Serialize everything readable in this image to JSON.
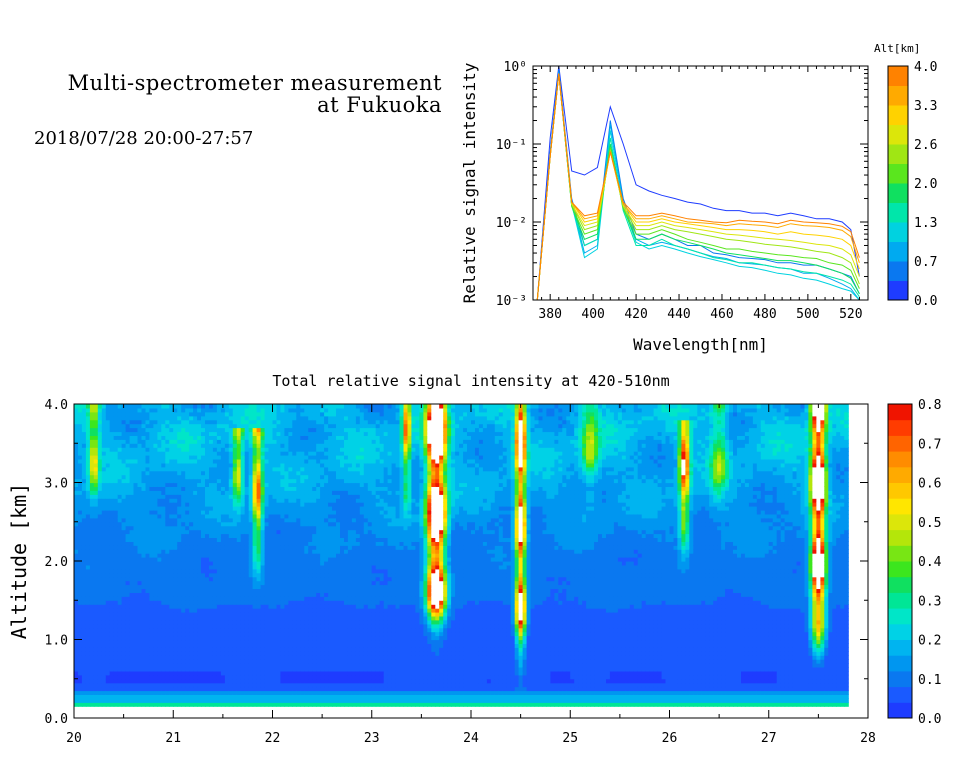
{
  "header": {
    "title_line1": "Multi-spectrometer measurement",
    "title_line2": "at Fukuoka",
    "datetime": "2018/07/28 20:00-27:57"
  },
  "chart_data": [
    {
      "type": "line",
      "xlabel": "Wavelength[nm]",
      "ylabel": "Relative signal intensity",
      "xlim": [
        372,
        528
      ],
      "ylim": [
        0.001,
        1
      ],
      "yscale": "log",
      "x_ticks": [
        380,
        400,
        420,
        440,
        460,
        480,
        500,
        520
      ],
      "y_tick_labels": [
        "10⁻³",
        "10⁻²",
        "10⁻¹",
        "10⁰"
      ],
      "y_ticks": [
        0.001,
        0.01,
        0.1,
        1
      ],
      "colorbar": {
        "label": "Alt[km]",
        "range": [
          0.0,
          4.0
        ],
        "tick_labels": [
          "0.0",
          "0.7",
          "1.3",
          "2.0",
          "2.6",
          "3.3",
          "4.0"
        ],
        "colors": [
          "#1e3cff",
          "#0a78f0",
          "#00aaf0",
          "#00d2e0",
          "#00e6aa",
          "#10e060",
          "#5ae61e",
          "#a0e614",
          "#dce60a",
          "#ffd200",
          "#ffaa00",
          "#ff8200"
        ]
      },
      "x": [
        374,
        380,
        384,
        390,
        396,
        402,
        408,
        414,
        420,
        426,
        432,
        438,
        444,
        450,
        456,
        462,
        468,
        474,
        480,
        486,
        492,
        498,
        504,
        510,
        516,
        520,
        524
      ],
      "series": [
        {
          "alt": 0.0,
          "color": "#1e3cff",
          "values": [
            0.001,
            0.12,
            1.0,
            0.045,
            0.04,
            0.05,
            0.3,
            0.1,
            0.03,
            0.025,
            0.022,
            0.02,
            0.018,
            0.017,
            0.015,
            0.014,
            0.014,
            0.013,
            0.013,
            0.012,
            0.013,
            0.012,
            0.011,
            0.011,
            0.01,
            0.008,
            0.002
          ]
        },
        {
          "alt": 0.3,
          "color": "#0a78f0",
          "values": [
            0.001,
            0.08,
            0.9,
            0.02,
            0.005,
            0.006,
            0.2,
            0.02,
            0.007,
            0.006,
            0.007,
            0.006,
            0.005,
            0.005,
            0.004,
            0.0038,
            0.0035,
            0.0034,
            0.0033,
            0.003,
            0.003,
            0.0028,
            0.0028,
            0.0025,
            0.0022,
            0.002,
            0.0012
          ]
        },
        {
          "alt": 0.7,
          "color": "#00aaf0",
          "values": [
            0.001,
            0.075,
            0.85,
            0.018,
            0.004,
            0.005,
            0.18,
            0.018,
            0.006,
            0.005,
            0.0055,
            0.005,
            0.0045,
            0.004,
            0.0036,
            0.0034,
            0.003,
            0.0029,
            0.0028,
            0.0026,
            0.0025,
            0.0022,
            0.0022,
            0.0019,
            0.0016,
            0.0014,
            0.001
          ]
        },
        {
          "alt": 1.0,
          "color": "#00d2e0",
          "values": [
            0.001,
            0.07,
            0.8,
            0.017,
            0.0035,
            0.0045,
            0.15,
            0.016,
            0.0055,
            0.0045,
            0.005,
            0.0045,
            0.004,
            0.0036,
            0.0033,
            0.003,
            0.0027,
            0.0026,
            0.0024,
            0.0022,
            0.0021,
            0.0019,
            0.0018,
            0.0016,
            0.0014,
            0.0013,
            0.001
          ]
        },
        {
          "alt": 1.3,
          "color": "#00e6aa",
          "values": [
            0.001,
            0.07,
            0.8,
            0.016,
            0.005,
            0.006,
            0.12,
            0.014,
            0.005,
            0.005,
            0.006,
            0.005,
            0.0045,
            0.004,
            0.0035,
            0.0033,
            0.003,
            0.003,
            0.0028,
            0.0026,
            0.0025,
            0.0023,
            0.0022,
            0.002,
            0.0018,
            0.0016,
            0.0011
          ]
        },
        {
          "alt": 1.7,
          "color": "#10e060",
          "values": [
            0.001,
            0.07,
            0.8,
            0.016,
            0.006,
            0.007,
            0.1,
            0.015,
            0.006,
            0.006,
            0.007,
            0.006,
            0.0055,
            0.005,
            0.0045,
            0.004,
            0.0038,
            0.0036,
            0.0034,
            0.0032,
            0.0032,
            0.003,
            0.0028,
            0.0025,
            0.0022,
            0.0019,
            0.0012
          ]
        },
        {
          "alt": 2.0,
          "color": "#5ae61e",
          "values": [
            0.001,
            0.07,
            0.8,
            0.016,
            0.007,
            0.008,
            0.09,
            0.015,
            0.007,
            0.007,
            0.008,
            0.007,
            0.006,
            0.0055,
            0.005,
            0.0045,
            0.0045,
            0.0042,
            0.004,
            0.0038,
            0.0037,
            0.0035,
            0.0034,
            0.003,
            0.0028,
            0.0024,
            0.0014
          ]
        },
        {
          "alt": 2.3,
          "color": "#a0e614",
          "values": [
            0.001,
            0.07,
            0.8,
            0.017,
            0.008,
            0.009,
            0.085,
            0.016,
            0.008,
            0.008,
            0.009,
            0.008,
            0.0075,
            0.007,
            0.0065,
            0.006,
            0.0058,
            0.0055,
            0.0052,
            0.005,
            0.0048,
            0.0045,
            0.0042,
            0.004,
            0.0035,
            0.003,
            0.0016
          ]
        },
        {
          "alt": 2.6,
          "color": "#dce60a",
          "values": [
            0.001,
            0.07,
            0.8,
            0.017,
            0.009,
            0.01,
            0.08,
            0.016,
            0.009,
            0.009,
            0.01,
            0.009,
            0.0085,
            0.008,
            0.0075,
            0.007,
            0.0068,
            0.0065,
            0.0062,
            0.006,
            0.0058,
            0.0055,
            0.0052,
            0.005,
            0.0045,
            0.0038,
            0.002
          ]
        },
        {
          "alt": 3.0,
          "color": "#ffd200",
          "values": [
            0.001,
            0.07,
            0.8,
            0.018,
            0.01,
            0.011,
            0.08,
            0.017,
            0.01,
            0.01,
            0.011,
            0.01,
            0.0095,
            0.009,
            0.0085,
            0.008,
            0.008,
            0.0078,
            0.0075,
            0.007,
            0.0075,
            0.007,
            0.0068,
            0.0065,
            0.006,
            0.005,
            0.0025
          ]
        },
        {
          "alt": 3.3,
          "color": "#ffaa00",
          "values": [
            0.001,
            0.07,
            0.8,
            0.018,
            0.011,
            0.012,
            0.08,
            0.017,
            0.011,
            0.011,
            0.012,
            0.011,
            0.01,
            0.0098,
            0.0095,
            0.009,
            0.0095,
            0.0092,
            0.009,
            0.0085,
            0.0095,
            0.009,
            0.0088,
            0.0085,
            0.0078,
            0.0065,
            0.003
          ]
        },
        {
          "alt": 3.7,
          "color": "#ff8200",
          "values": [
            0.001,
            0.07,
            0.8,
            0.018,
            0.012,
            0.013,
            0.08,
            0.018,
            0.012,
            0.012,
            0.013,
            0.012,
            0.011,
            0.0105,
            0.01,
            0.0098,
            0.0105,
            0.0102,
            0.01,
            0.0095,
            0.0105,
            0.01,
            0.0098,
            0.0095,
            0.0088,
            0.0075,
            0.0035
          ]
        }
      ]
    },
    {
      "type": "heatmap",
      "title": "Total relative signal intensity at 420-510nm",
      "ylabel": "Altitude [km]",
      "xlim": [
        20,
        28
      ],
      "ylim": [
        0,
        4
      ],
      "data_x_range": [
        20,
        27.8
      ],
      "data_y_range": [
        0.15,
        4.0
      ],
      "x_ticks": [
        20,
        21,
        22,
        23,
        24,
        25,
        26,
        27,
        28
      ],
      "y_ticks": [
        0.0,
        1.0,
        2.0,
        3.0,
        4.0
      ],
      "y_tick_labels": [
        "0.0",
        "1.0",
        "2.0",
        "3.0",
        "4.0"
      ],
      "colorbar": {
        "range": [
          0.0,
          0.8
        ],
        "tick_labels": [
          "0.0",
          "0.1",
          "0.2",
          "0.3",
          "0.4",
          "0.5",
          "0.6",
          "0.7",
          "0.8"
        ],
        "colors": [
          "#1e3cff",
          "#1a5aff",
          "#0a78f0",
          "#0096f0",
          "#00b4f0",
          "#00d2e6",
          "#00e6c8",
          "#00e696",
          "#10e060",
          "#3ce61e",
          "#78e614",
          "#b4e60a",
          "#dce60a",
          "#ffe600",
          "#ffc800",
          "#ffaa00",
          "#ff8c00",
          "#ff6400",
          "#ff3c00",
          "#f01400"
        ],
        "over_color": "#ffffff"
      },
      "base_profile": {
        "altitudes": [
          0.15,
          0.2,
          0.25,
          0.3,
          0.35,
          0.45,
          0.6,
          1.0,
          1.3,
          1.6,
          2.0,
          2.4,
          2.8,
          3.2,
          3.6,
          4.0
        ],
        "values": [
          0.35,
          0.22,
          0.12,
          0.2,
          0.08,
          0.04,
          0.04,
          0.05,
          0.07,
          0.09,
          0.1,
          0.12,
          0.15,
          0.17,
          0.19,
          0.18
        ]
      },
      "plumes": [
        {
          "time": 23.65,
          "width": 0.09,
          "alt_min": 1.7,
          "alt_max": 4.0,
          "peak": 1.0
        },
        {
          "time": 24.5,
          "width": 0.05,
          "alt_min": 1.3,
          "alt_max": 4.0,
          "peak": 0.75
        },
        {
          "time": 27.5,
          "width": 0.07,
          "alt_min": 1.5,
          "alt_max": 4.0,
          "peak": 0.95
        },
        {
          "time": 26.15,
          "width": 0.05,
          "alt_min": 2.8,
          "alt_max": 3.8,
          "peak": 0.6
        },
        {
          "time": 21.85,
          "width": 0.05,
          "alt_min": 2.5,
          "alt_max": 3.7,
          "peak": 0.5
        },
        {
          "time": 21.65,
          "width": 0.05,
          "alt_min": 3.3,
          "alt_max": 3.7,
          "peak": 0.45
        },
        {
          "time": 23.35,
          "width": 0.04,
          "alt_min": 3.3,
          "alt_max": 4.0,
          "peak": 0.45
        },
        {
          "time": 20.2,
          "width": 0.05,
          "alt_min": 3.3,
          "alt_max": 4.0,
          "peak": 0.35
        },
        {
          "time": 25.2,
          "width": 0.08,
          "alt_min": 3.4,
          "alt_max": 4.0,
          "peak": 0.25
        },
        {
          "time": 26.5,
          "width": 0.08,
          "alt_min": 3.3,
          "alt_max": 4.0,
          "peak": 0.25
        }
      ]
    }
  ]
}
